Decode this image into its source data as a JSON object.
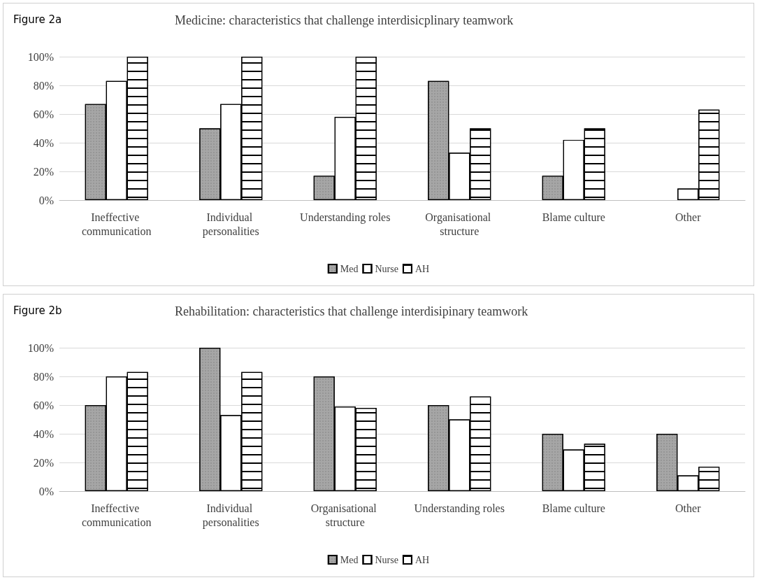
{
  "chart_data": [
    {
      "type": "bar",
      "title": "Medicine: characteristics that challenge interdisicplinary teamwork",
      "annotations": [
        "Figure 2a"
      ],
      "categories": [
        "Ineffective communication",
        "Individual personalities",
        "Understanding roles",
        "Organisational structure",
        "Blame culture",
        "Other"
      ],
      "series": [
        {
          "name": "Med",
          "color": "#a6a6a6",
          "values": [
            67,
            50,
            17,
            83,
            17,
            0
          ]
        },
        {
          "name": "Nurse",
          "color": "#ffffff",
          "values": [
            83,
            67,
            58,
            33,
            42,
            8
          ]
        },
        {
          "name": "AH",
          "color": "#ffffff",
          "values": [
            100,
            100,
            100,
            50,
            50,
            63
          ]
        }
      ],
      "ylim": [
        0,
        100
      ],
      "yticks": [
        {
          "value": 0,
          "label": "0%"
        },
        {
          "value": 20,
          "label": "20%"
        },
        {
          "value": 40,
          "label": "40%"
        },
        {
          "value": 60,
          "label": "60%"
        },
        {
          "value": 80,
          "label": "80%"
        },
        {
          "value": 100,
          "label": "100%"
        }
      ],
      "grid": "y",
      "legend": "bottom"
    },
    {
      "type": "bar",
      "title": "Rehabilitation: characteristics that challenge interdisipinary teamwork",
      "annotations": [
        "Figure 2b"
      ],
      "categories": [
        "Ineffective communication",
        "Individual personalities",
        "Organisational structure",
        "Understanding roles",
        "Blame culture",
        "Other"
      ],
      "series": [
        {
          "name": "Med",
          "color": "#a6a6a6",
          "values": [
            60,
            100,
            80,
            60,
            40,
            40
          ]
        },
        {
          "name": "Nurse",
          "color": "#ffffff",
          "values": [
            80,
            53,
            59,
            50,
            29,
            11
          ]
        },
        {
          "name": "AH",
          "color": "#ffffff",
          "values": [
            83,
            83,
            58,
            66,
            33,
            17
          ]
        }
      ],
      "ylim": [
        0,
        100
      ],
      "yticks": [
        {
          "value": 0,
          "label": "0%"
        },
        {
          "value": 20,
          "label": "20%"
        },
        {
          "value": 40,
          "label": "40%"
        },
        {
          "value": 60,
          "label": "60%"
        },
        {
          "value": 80,
          "label": "80%"
        },
        {
          "value": 100,
          "label": "100%"
        }
      ],
      "grid": "y",
      "legend": "bottom"
    }
  ]
}
